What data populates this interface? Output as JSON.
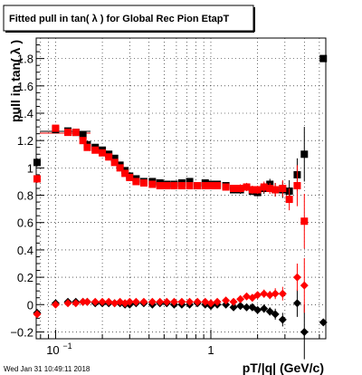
{
  "title": "Fitted pull in tan( λ ) for Global Rec Pion EtapT",
  "footer": {
    "timestamp": "Wed Jan 31 10:49:11 2018"
  },
  "chart_data": {
    "type": "scatter",
    "title": "Fitted pull in tan( λ ) for Global Rec Pion EtapT",
    "xlabel": "pT/|q| (GeV/c)",
    "ylabel": "pull in tan( λ )",
    "x_scale": "log",
    "xlim": [
      0.075,
      5.5
    ],
    "ylim": [
      -0.25,
      1.95
    ],
    "grid": true,
    "x_ticks": [
      {
        "value": 0.1,
        "label": "10",
        "exp": "−1"
      },
      {
        "value": 1,
        "label": "1"
      }
    ],
    "y_ticks": [
      {
        "value": -0.2,
        "label": "−0.2"
      },
      {
        "value": 0,
        "label": "0"
      },
      {
        "value": 0.2,
        "label": "0.2"
      },
      {
        "value": 0.4,
        "label": "0.4"
      },
      {
        "value": 0.6,
        "label": "0.6"
      },
      {
        "value": 0.8,
        "label": "0.8"
      },
      {
        "value": 1,
        "label": "1"
      },
      {
        "value": 1.2,
        "label": "1.2"
      },
      {
        "value": 1.4,
        "label": "1.4"
      },
      {
        "value": 1.6,
        "label": "1.6"
      },
      {
        "value": 1.8,
        "label": "1.8"
      }
    ],
    "series": [
      {
        "marker": "square",
        "color": "#000000",
        "points": [
          {
            "x": 0.076,
            "y": 1.04,
            "err": 0.03
          },
          {
            "x": 0.1,
            "y": 1.28,
            "err": 0.02
          },
          {
            "x": 0.12,
            "y": 1.27,
            "err": 0.02
          },
          {
            "x": 0.135,
            "y": 1.26,
            "err": 0.02
          },
          {
            "x": 0.15,
            "y": 1.24,
            "err": 0.02
          },
          {
            "x": 0.16,
            "y": 1.17,
            "err": 0.02
          },
          {
            "x": 0.18,
            "y": 1.15,
            "err": 0.02
          },
          {
            "x": 0.2,
            "y": 1.13,
            "err": 0.02
          },
          {
            "x": 0.22,
            "y": 1.1,
            "err": 0.02
          },
          {
            "x": 0.24,
            "y": 1.07,
            "err": 0.02
          },
          {
            "x": 0.26,
            "y": 1.02,
            "err": 0.02
          },
          {
            "x": 0.28,
            "y": 0.98,
            "err": 0.02
          },
          {
            "x": 0.3,
            "y": 0.94,
            "err": 0.02
          },
          {
            "x": 0.33,
            "y": 0.92,
            "err": 0.02
          },
          {
            "x": 0.37,
            "y": 0.9,
            "err": 0.02
          },
          {
            "x": 0.42,
            "y": 0.9,
            "err": 0.02
          },
          {
            "x": 0.47,
            "y": 0.89,
            "err": 0.02
          },
          {
            "x": 0.52,
            "y": 0.88,
            "err": 0.02
          },
          {
            "x": 0.58,
            "y": 0.88,
            "err": 0.02
          },
          {
            "x": 0.65,
            "y": 0.89,
            "err": 0.02
          },
          {
            "x": 0.73,
            "y": 0.9,
            "err": 0.02
          },
          {
            "x": 0.82,
            "y": 0.87,
            "err": 0.02
          },
          {
            "x": 0.92,
            "y": 0.89,
            "err": 0.02
          },
          {
            "x": 1.0,
            "y": 0.88,
            "err": 0.02
          },
          {
            "x": 1.1,
            "y": 0.88,
            "err": 0.02
          },
          {
            "x": 1.25,
            "y": 0.87,
            "err": 0.02
          },
          {
            "x": 1.4,
            "y": 0.84,
            "err": 0.02
          },
          {
            "x": 1.55,
            "y": 0.84,
            "err": 0.03
          },
          {
            "x": 1.7,
            "y": 0.86,
            "err": 0.03
          },
          {
            "x": 1.85,
            "y": 0.83,
            "err": 0.03
          },
          {
            "x": 2.0,
            "y": 0.82,
            "err": 0.03
          },
          {
            "x": 2.2,
            "y": 0.85,
            "err": 0.04
          },
          {
            "x": 2.4,
            "y": 0.88,
            "err": 0.04
          },
          {
            "x": 2.6,
            "y": 0.84,
            "err": 0.05
          },
          {
            "x": 2.9,
            "y": 0.84,
            "err": 0.06
          },
          {
            "x": 3.2,
            "y": 0.83,
            "err": 0.08
          },
          {
            "x": 3.6,
            "y": 0.95,
            "err": 0.12
          },
          {
            "x": 4.0,
            "y": 1.1,
            "err": 0.2
          },
          {
            "x": 5.3,
            "y": 1.8,
            "err": 0.0
          }
        ]
      },
      {
        "marker": "square",
        "color": "#ff0000",
        "points": [
          {
            "x": 0.076,
            "y": 0.92,
            "err": 0.03
          },
          {
            "x": 0.1,
            "y": 1.29,
            "err": 0.02
          },
          {
            "x": 0.12,
            "y": 1.26,
            "err": 0.02
          },
          {
            "x": 0.135,
            "y": 1.26,
            "err": 0.02
          },
          {
            "x": 0.15,
            "y": 1.2,
            "err": 0.02
          },
          {
            "x": 0.16,
            "y": 1.15,
            "err": 0.02
          },
          {
            "x": 0.18,
            "y": 1.13,
            "err": 0.02
          },
          {
            "x": 0.2,
            "y": 1.11,
            "err": 0.02
          },
          {
            "x": 0.22,
            "y": 1.08,
            "err": 0.02
          },
          {
            "x": 0.24,
            "y": 1.04,
            "err": 0.02
          },
          {
            "x": 0.26,
            "y": 1.0,
            "err": 0.02
          },
          {
            "x": 0.28,
            "y": 0.96,
            "err": 0.02
          },
          {
            "x": 0.3,
            "y": 0.93,
            "err": 0.02
          },
          {
            "x": 0.33,
            "y": 0.9,
            "err": 0.02
          },
          {
            "x": 0.37,
            "y": 0.89,
            "err": 0.02
          },
          {
            "x": 0.42,
            "y": 0.88,
            "err": 0.02
          },
          {
            "x": 0.47,
            "y": 0.87,
            "err": 0.02
          },
          {
            "x": 0.52,
            "y": 0.87,
            "err": 0.02
          },
          {
            "x": 0.58,
            "y": 0.87,
            "err": 0.02
          },
          {
            "x": 0.65,
            "y": 0.87,
            "err": 0.02
          },
          {
            "x": 0.73,
            "y": 0.87,
            "err": 0.02
          },
          {
            "x": 0.82,
            "y": 0.87,
            "err": 0.02
          },
          {
            "x": 0.92,
            "y": 0.87,
            "err": 0.02
          },
          {
            "x": 1.0,
            "y": 0.87,
            "err": 0.02
          },
          {
            "x": 1.1,
            "y": 0.87,
            "err": 0.02
          },
          {
            "x": 1.25,
            "y": 0.86,
            "err": 0.02
          },
          {
            "x": 1.4,
            "y": 0.85,
            "err": 0.02
          },
          {
            "x": 1.55,
            "y": 0.85,
            "err": 0.03
          },
          {
            "x": 1.7,
            "y": 0.86,
            "err": 0.03
          },
          {
            "x": 1.85,
            "y": 0.84,
            "err": 0.03
          },
          {
            "x": 2.0,
            "y": 0.84,
            "err": 0.03
          },
          {
            "x": 2.2,
            "y": 0.86,
            "err": 0.04
          },
          {
            "x": 2.4,
            "y": 0.85,
            "err": 0.04
          },
          {
            "x": 2.6,
            "y": 0.84,
            "err": 0.05
          },
          {
            "x": 2.9,
            "y": 0.85,
            "err": 0.06
          },
          {
            "x": 3.2,
            "y": 0.77,
            "err": 0.08
          },
          {
            "x": 3.6,
            "y": 0.87,
            "err": 0.15
          },
          {
            "x": 4.0,
            "y": 0.61,
            "err": 0.2
          }
        ]
      },
      {
        "marker": "diamond",
        "color": "#000000",
        "points": [
          {
            "x": 0.076,
            "y": -0.06,
            "err": 0.02
          },
          {
            "x": 0.1,
            "y": 0.01,
            "err": 0.01
          },
          {
            "x": 0.12,
            "y": 0.02,
            "err": 0.01
          },
          {
            "x": 0.135,
            "y": 0.02,
            "err": 0.01
          },
          {
            "x": 0.15,
            "y": 0.02,
            "err": 0.01
          },
          {
            "x": 0.16,
            "y": 0.02,
            "err": 0.01
          },
          {
            "x": 0.18,
            "y": 0.01,
            "err": 0.01
          },
          {
            "x": 0.2,
            "y": 0.01,
            "err": 0.01
          },
          {
            "x": 0.22,
            "y": 0.01,
            "err": 0.01
          },
          {
            "x": 0.24,
            "y": 0.01,
            "err": 0.01
          },
          {
            "x": 0.26,
            "y": 0.01,
            "err": 0.01
          },
          {
            "x": 0.28,
            "y": 0.0,
            "err": 0.01
          },
          {
            "x": 0.3,
            "y": 0.0,
            "err": 0.01
          },
          {
            "x": 0.33,
            "y": 0.01,
            "err": 0.01
          },
          {
            "x": 0.37,
            "y": 0.01,
            "err": 0.01
          },
          {
            "x": 0.42,
            "y": 0.0,
            "err": 0.01
          },
          {
            "x": 0.47,
            "y": 0.01,
            "err": 0.01
          },
          {
            "x": 0.52,
            "y": 0.01,
            "err": 0.01
          },
          {
            "x": 0.58,
            "y": 0.0,
            "err": 0.01
          },
          {
            "x": 0.65,
            "y": 0.0,
            "err": 0.01
          },
          {
            "x": 0.73,
            "y": 0.0,
            "err": 0.01
          },
          {
            "x": 0.82,
            "y": 0.01,
            "err": 0.01
          },
          {
            "x": 0.92,
            "y": 0.0,
            "err": 0.01
          },
          {
            "x": 1.0,
            "y": -0.01,
            "err": 0.01
          },
          {
            "x": 1.1,
            "y": 0.0,
            "err": 0.01
          },
          {
            "x": 1.25,
            "y": 0.0,
            "err": 0.01
          },
          {
            "x": 1.4,
            "y": -0.02,
            "err": 0.01
          },
          {
            "x": 1.55,
            "y": -0.01,
            "err": 0.02
          },
          {
            "x": 1.7,
            "y": -0.02,
            "err": 0.02
          },
          {
            "x": 1.85,
            "y": -0.02,
            "err": 0.02
          },
          {
            "x": 2.0,
            "y": -0.04,
            "err": 0.02
          },
          {
            "x": 2.2,
            "y": -0.03,
            "err": 0.03
          },
          {
            "x": 2.4,
            "y": -0.05,
            "err": 0.03
          },
          {
            "x": 2.6,
            "y": -0.07,
            "err": 0.04
          },
          {
            "x": 2.9,
            "y": -0.11,
            "err": 0.05
          },
          {
            "x": 3.6,
            "y": 0.01,
            "err": 0.1
          },
          {
            "x": 4.0,
            "y": -0.2,
            "err": 0.2
          },
          {
            "x": 5.3,
            "y": -0.13,
            "err": 0.0
          }
        ]
      },
      {
        "marker": "diamond",
        "color": "#ff0000",
        "points": [
          {
            "x": 0.076,
            "y": -0.07,
            "err": 0.02
          },
          {
            "x": 0.1,
            "y": 0.0,
            "err": 0.01
          },
          {
            "x": 0.12,
            "y": 0.01,
            "err": 0.01
          },
          {
            "x": 0.135,
            "y": 0.01,
            "err": 0.01
          },
          {
            "x": 0.15,
            "y": 0.02,
            "err": 0.01
          },
          {
            "x": 0.16,
            "y": 0.02,
            "err": 0.01
          },
          {
            "x": 0.18,
            "y": 0.02,
            "err": 0.01
          },
          {
            "x": 0.2,
            "y": 0.02,
            "err": 0.01
          },
          {
            "x": 0.22,
            "y": 0.02,
            "err": 0.01
          },
          {
            "x": 0.24,
            "y": 0.01,
            "err": 0.01
          },
          {
            "x": 0.26,
            "y": 0.02,
            "err": 0.01
          },
          {
            "x": 0.28,
            "y": 0.01,
            "err": 0.01
          },
          {
            "x": 0.3,
            "y": 0.02,
            "err": 0.01
          },
          {
            "x": 0.33,
            "y": 0.02,
            "err": 0.01
          },
          {
            "x": 0.37,
            "y": 0.02,
            "err": 0.01
          },
          {
            "x": 0.42,
            "y": 0.02,
            "err": 0.01
          },
          {
            "x": 0.47,
            "y": 0.02,
            "err": 0.01
          },
          {
            "x": 0.52,
            "y": 0.02,
            "err": 0.01
          },
          {
            "x": 0.58,
            "y": 0.02,
            "err": 0.01
          },
          {
            "x": 0.65,
            "y": 0.02,
            "err": 0.01
          },
          {
            "x": 0.73,
            "y": 0.02,
            "err": 0.01
          },
          {
            "x": 0.82,
            "y": 0.02,
            "err": 0.01
          },
          {
            "x": 0.92,
            "y": 0.02,
            "err": 0.01
          },
          {
            "x": 1.0,
            "y": 0.01,
            "err": 0.01
          },
          {
            "x": 1.1,
            "y": 0.02,
            "err": 0.01
          },
          {
            "x": 1.25,
            "y": 0.03,
            "err": 0.01
          },
          {
            "x": 1.4,
            "y": 0.02,
            "err": 0.01
          },
          {
            "x": 1.55,
            "y": 0.04,
            "err": 0.02
          },
          {
            "x": 1.7,
            "y": 0.06,
            "err": 0.02
          },
          {
            "x": 1.85,
            "y": 0.05,
            "err": 0.02
          },
          {
            "x": 2.0,
            "y": 0.07,
            "err": 0.02
          },
          {
            "x": 2.2,
            "y": 0.08,
            "err": 0.03
          },
          {
            "x": 2.4,
            "y": 0.07,
            "err": 0.03
          },
          {
            "x": 2.6,
            "y": 0.08,
            "err": 0.04
          },
          {
            "x": 2.9,
            "y": 0.08,
            "err": 0.05
          },
          {
            "x": 3.6,
            "y": 0.2,
            "err": 0.1
          },
          {
            "x": 4.0,
            "y": 0.14,
            "err": 0.2
          }
        ]
      }
    ]
  }
}
